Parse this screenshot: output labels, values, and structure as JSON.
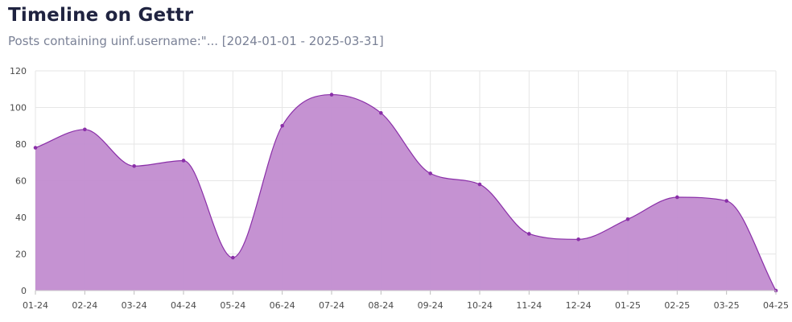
{
  "header": {
    "title": "Timeline on Gettr",
    "subtitle": "Posts containing uinf.username:\"... [2024-01-01 - 2025-03-31]"
  },
  "colors": {
    "fill": "#c28cd0",
    "line": "#8a2fa8",
    "point": "#8a2fa8",
    "grid": "#e6e6e6"
  },
  "chart_data": {
    "type": "area",
    "title": "Timeline on Gettr",
    "xlabel": "",
    "ylabel": "",
    "categories": [
      "01-24",
      "02-24",
      "03-24",
      "04-24",
      "05-24",
      "06-24",
      "07-24",
      "08-24",
      "09-24",
      "10-24",
      "11-24",
      "12-24",
      "01-25",
      "02-25",
      "03-25",
      "04-25"
    ],
    "values": [
      78,
      88,
      68,
      71,
      18,
      90,
      107,
      97,
      64,
      58,
      31,
      28,
      39,
      51,
      49,
      0
    ],
    "ylim": [
      0,
      120
    ],
    "yticks": [
      0,
      20,
      40,
      60,
      80,
      100,
      120
    ],
    "grid": true,
    "legend": "none"
  }
}
